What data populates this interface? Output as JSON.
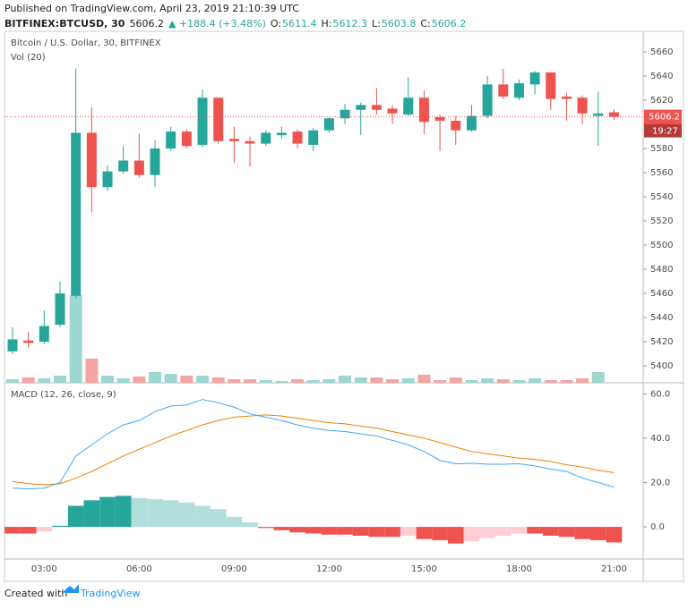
{
  "header": {
    "published": "Published on TradingView.com, April 23, 2019 21:10:39 UTC",
    "symbol": "BITFINEX:BTCUSD, 30",
    "price": "5606.2",
    "change": "▲ +188.4 (+3.48%)",
    "o_label": "O:",
    "o": "5611.4",
    "h_label": "H:",
    "h": "5612.3",
    "l_label": "L:",
    "l": "5603.8",
    "c_label": "C:",
    "c": "5606.2"
  },
  "footer": {
    "created": "Created with",
    "brand": "TradingView"
  },
  "chart_data": [
    {
      "type": "candlestick",
      "title": "Bitcoin / U.S. Dollar, 30, BITFINEX",
      "volume_title": "Vol (20)",
      "categories": [
        null,
        null,
        "03:00",
        null,
        null,
        null,
        null,
        null,
        "06:00",
        null,
        null,
        null,
        null,
        null,
        "09:00",
        null,
        null,
        null,
        null,
        null,
        "12:00",
        null,
        null,
        null,
        null,
        null,
        "15:00",
        null,
        null,
        null,
        null,
        null,
        "18:00",
        null,
        null,
        null,
        null,
        null,
        "21:00"
      ],
      "open": [
        5412,
        5421,
        5420,
        5434,
        5458,
        5593,
        5548,
        5561,
        5570,
        5558,
        5580,
        5594,
        5583,
        5622,
        5588,
        5586,
        5584,
        5591,
        5594,
        5583,
        5595,
        5605,
        5612,
        5616,
        5613,
        5608,
        5622,
        5606,
        5603,
        5595,
        5607,
        5633,
        5622,
        5633,
        5643,
        5623,
        5622,
        5607,
        5610
      ],
      "high": [
        5432,
        5428,
        5446,
        5470,
        5646,
        5614,
        5566,
        5582,
        5592,
        5587,
        5598,
        5596,
        5629,
        5622,
        5598,
        5590,
        5595,
        5598,
        5596,
        5597,
        5606,
        5617,
        5618,
        5630,
        5616,
        5639,
        5628,
        5608,
        5607,
        5616,
        5640,
        5646,
        5637,
        5644,
        5643,
        5626,
        5624,
        5627,
        5612.3
      ],
      "low": [
        5410,
        5415,
        5418,
        5432,
        5456,
        5527,
        5545,
        5559,
        5556,
        5548,
        5578,
        5580,
        5581,
        5584,
        5568,
        5565,
        5582,
        5588,
        5580,
        5578,
        5593,
        5600,
        5591,
        5608,
        5600,
        5607,
        5592,
        5578,
        5583,
        5594,
        5605,
        5621,
        5620,
        5625,
        5612,
        5603,
        5600,
        5582,
        5603.8
      ],
      "close": [
        5422,
        5419,
        5433,
        5460,
        5593,
        5548,
        5561,
        5570,
        5558,
        5580,
        5594,
        5582,
        5622,
        5586,
        5586,
        5584,
        5593,
        5593,
        5584,
        5595,
        5605,
        5612,
        5616,
        5612,
        5609,
        5622,
        5602,
        5603,
        5595,
        5607,
        5633,
        5623,
        5634,
        5643,
        5621,
        5621,
        5609,
        5609,
        5606.2
      ],
      "volume": [
        4,
        6,
        5,
        8,
        98,
        27,
        8,
        5,
        7,
        12,
        10,
        8,
        8,
        6,
        4,
        4,
        3,
        2,
        4,
        3,
        4,
        8,
        6,
        6,
        4,
        5,
        9,
        3,
        6,
        3,
        5,
        4,
        3,
        5,
        3,
        3,
        5,
        12,
        0
      ],
      "up_color": "#26a69a",
      "down_color": "#ef5350",
      "vol_up_color": "#9ed6d0",
      "vol_down_color": "#f4a4a2",
      "ylim": [
        5386,
        5677
      ],
      "yticks": [
        5400,
        5420,
        5440,
        5460,
        5480,
        5500,
        5520,
        5540,
        5560,
        5580,
        5600,
        5620,
        5640,
        5660
      ],
      "last_price": {
        "value": 5606.2,
        "label": "5606.2"
      },
      "countdown": "19:27"
    },
    {
      "type": "macd",
      "title": "MACD (12, 26, close, 9)",
      "macd": {
        "color": "#42a5f5",
        "values": [
          17.5,
          17.2,
          17.5,
          20,
          32,
          37,
          42,
          46,
          48,
          52,
          54.5,
          55,
          57.5,
          56,
          54,
          51,
          49.5,
          48,
          46,
          44.5,
          43.5,
          43,
          42,
          41,
          39,
          37,
          34,
          30,
          28.5,
          28.7,
          28.3,
          28.3,
          28.5,
          27.5,
          26,
          25,
          22,
          20,
          18
        ]
      },
      "signal": {
        "color": "#f57c00",
        "values": [
          20.5,
          19.5,
          19,
          19.5,
          22,
          25,
          28.5,
          32,
          35,
          38,
          41,
          43.5,
          46,
          48,
          49.5,
          50,
          50.5,
          50,
          49,
          48,
          47,
          46.5,
          45.5,
          44.5,
          43,
          41.5,
          40,
          38,
          36,
          34,
          33,
          32,
          31,
          30.5,
          29.5,
          28,
          27,
          25.5,
          24.5
        ]
      },
      "histogram": {
        "values": [
          -3,
          -3,
          -2,
          0.5,
          9.5,
          12,
          13.5,
          14,
          13,
          12.5,
          12,
          11,
          9.5,
          8,
          4.5,
          2,
          -0.5,
          -1.5,
          -2.5,
          -3,
          -3.5,
          -3.5,
          -4,
          -4.5,
          -4.5,
          -4,
          -5.5,
          -6,
          -7.5,
          -6.5,
          -5,
          -4,
          -3,
          -3,
          -4,
          -4.5,
          -5.5,
          -6,
          -7
        ],
        "colors": [
          "#26a69a",
          "#b2dfdb",
          "#ef5350",
          "#ffcdd2"
        ]
      },
      "ylim": [
        -14.5,
        65
      ],
      "yticks": [
        {
          "value": 0,
          "label": "0.0"
        },
        {
          "value": 20,
          "label": "20.0"
        },
        {
          "value": 40,
          "label": "40.0"
        },
        {
          "value": 60,
          "label": "60.0"
        }
      ]
    }
  ]
}
